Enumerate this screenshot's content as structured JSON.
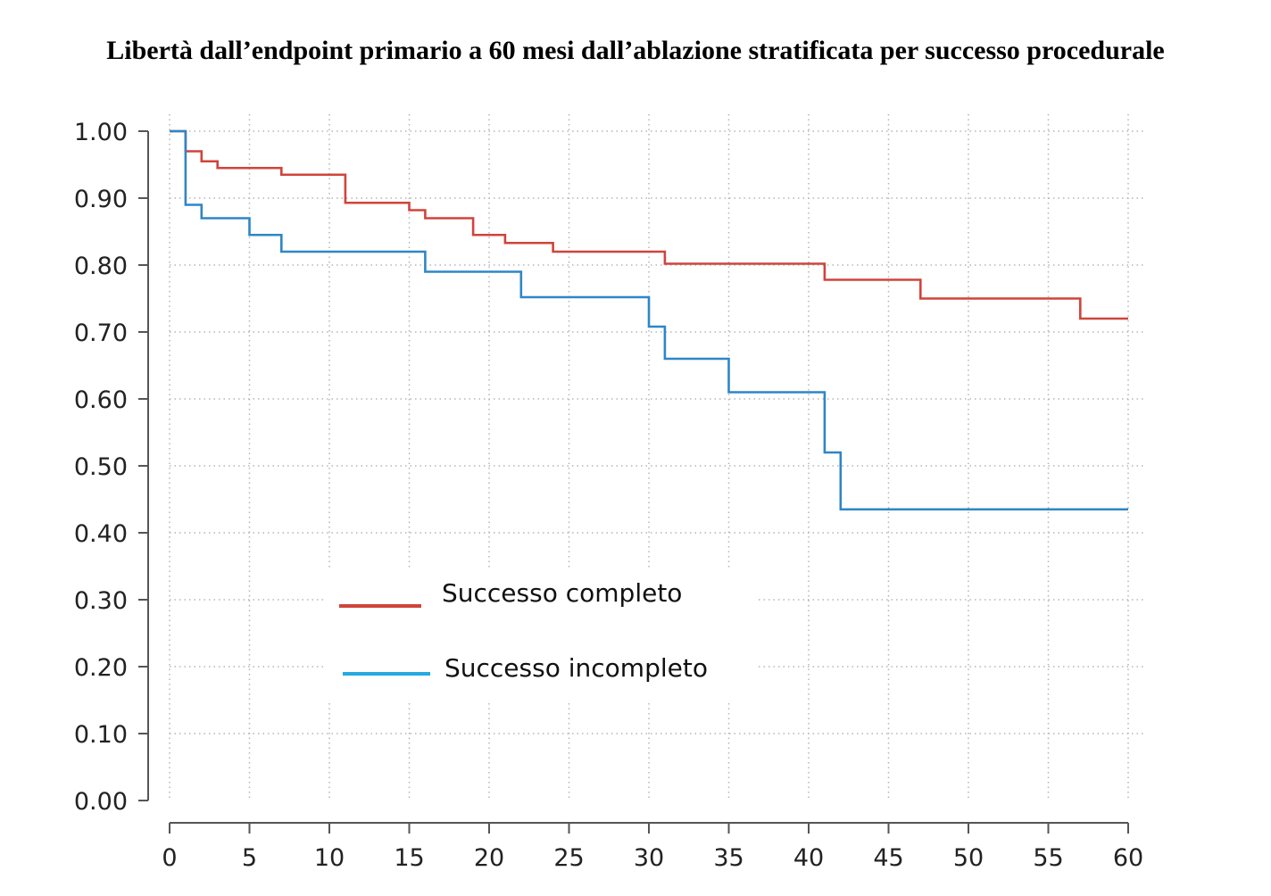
{
  "chart_data": {
    "type": "line",
    "title": "Libertà dall’endpoint primario a 60 mesi dall’ablazione stratificata per successo procedurale",
    "xlabel": "",
    "ylabel": "",
    "xlim": [
      0,
      60
    ],
    "ylim": [
      0,
      1
    ],
    "x_ticks": [
      "0",
      "5",
      "10",
      "15",
      "20",
      "25",
      "30",
      "35",
      "40",
      "45",
      "50",
      "55",
      "60"
    ],
    "y_ticks": [
      "0.00",
      "0.10",
      "0.20",
      "0.30",
      "0.40",
      "0.50",
      "0.60",
      "0.70",
      "0.80",
      "0.90",
      "1.00"
    ],
    "grid": "dotted",
    "legend_position": "center-left",
    "step": true,
    "series": [
      {
        "name": "Successo completo",
        "color": "#d0443a",
        "x": [
          0,
          1,
          2,
          3,
          7,
          11,
          15,
          16,
          19,
          21,
          24,
          31,
          41,
          47,
          57,
          60
        ],
        "y": [
          1.0,
          0.97,
          0.955,
          0.945,
          0.935,
          0.893,
          0.882,
          0.87,
          0.845,
          0.833,
          0.82,
          0.802,
          0.778,
          0.75,
          0.72,
          0.72
        ]
      },
      {
        "name": "Successo incompleto",
        "color": "#2f86c5",
        "x": [
          0,
          1,
          2,
          5,
          7,
          16,
          22,
          30,
          31,
          35,
          41,
          42,
          60
        ],
        "y": [
          1.0,
          0.89,
          0.87,
          0.845,
          0.82,
          0.79,
          0.752,
          0.708,
          0.66,
          0.61,
          0.52,
          0.435,
          0.435
        ]
      }
    ]
  }
}
